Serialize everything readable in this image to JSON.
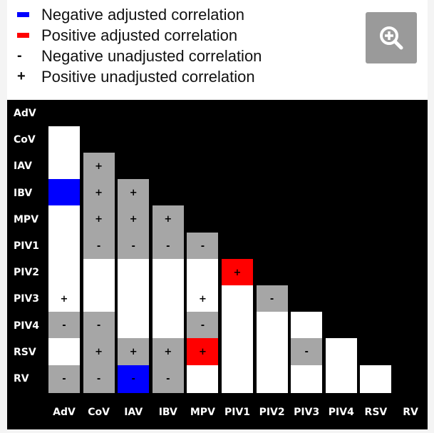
{
  "legend": [
    {
      "key": "",
      "swatch": "#0000ff",
      "label": "Negative adjusted correlation"
    },
    {
      "key": "",
      "swatch": "#ff0000",
      "label": "Positive adjusted correlation"
    },
    {
      "key": "-",
      "swatch": null,
      "label": "Negative unadjusted correlation"
    },
    {
      "key": "+",
      "swatch": null,
      "label": "Positive unadjusted correlation"
    }
  ],
  "toolbar": {
    "zoom_icon": "zoom-in-icon"
  },
  "colors": {
    "background": "#000000",
    "blank": "#ffffff",
    "unadjusted": "#a6a6a6",
    "negative_adjusted": "#0000ff",
    "positive_adjusted": "#ff0000"
  },
  "chart_data": {
    "type": "heatmap",
    "layout": "lower-triangular",
    "rows": [
      "AdV",
      "CoV",
      "IAV",
      "IBV",
      "MPV",
      "PIV1",
      "PIV2",
      "PIV3",
      "PIV4",
      "RSV",
      "RV"
    ],
    "columns": [
      "AdV",
      "CoV",
      "IAV",
      "IBV",
      "MPV",
      "PIV1",
      "PIV2",
      "PIV3",
      "PIV4",
      "RSV",
      "RV"
    ],
    "cell_types": {
      "none": "white",
      "unadjusted": "grey",
      "negative_adjusted": "blue",
      "positive_adjusted": "red"
    },
    "cells": [
      [],
      [
        [
          "none",
          ""
        ]
      ],
      [
        [
          "none",
          ""
        ],
        [
          "unadjusted",
          "+"
        ]
      ],
      [
        [
          "negative_adjusted",
          ""
        ],
        [
          "unadjusted",
          "+"
        ],
        [
          "unadjusted",
          "+"
        ]
      ],
      [
        [
          "none",
          ""
        ],
        [
          "unadjusted",
          "+"
        ],
        [
          "unadjusted",
          "+"
        ],
        [
          "unadjusted",
          "+"
        ]
      ],
      [
        [
          "none",
          ""
        ],
        [
          "unadjusted",
          "-"
        ],
        [
          "unadjusted",
          "-"
        ],
        [
          "unadjusted",
          "-"
        ],
        [
          "unadjusted",
          "-"
        ]
      ],
      [
        [
          "none",
          ""
        ],
        [
          "none",
          ""
        ],
        [
          "none",
          ""
        ],
        [
          "none",
          ""
        ],
        [
          "none",
          ""
        ],
        [
          "positive_adjusted",
          "+"
        ]
      ],
      [
        [
          "none",
          "+"
        ],
        [
          "none",
          ""
        ],
        [
          "none",
          ""
        ],
        [
          "none",
          ""
        ],
        [
          "none",
          "+"
        ],
        [
          "none",
          ""
        ],
        [
          "unadjusted",
          "-"
        ]
      ],
      [
        [
          "unadjusted",
          "-"
        ],
        [
          "unadjusted",
          "-"
        ],
        [
          "none",
          ""
        ],
        [
          "none",
          ""
        ],
        [
          "unadjusted",
          "-"
        ],
        [
          "none",
          ""
        ],
        [
          "none",
          ""
        ],
        [
          "none",
          ""
        ]
      ],
      [
        [
          "none",
          ""
        ],
        [
          "unadjusted",
          "+"
        ],
        [
          "unadjusted",
          "+"
        ],
        [
          "unadjusted",
          "+"
        ],
        [
          "positive_adjusted",
          "+"
        ],
        [
          "none",
          ""
        ],
        [
          "none",
          ""
        ],
        [
          "unadjusted",
          "-"
        ],
        [
          "none",
          ""
        ]
      ],
      [
        [
          "unadjusted",
          "-"
        ],
        [
          "unadjusted",
          "-"
        ],
        [
          "negative_adjusted",
          "-"
        ],
        [
          "unadjusted",
          "-"
        ],
        [
          "none",
          ""
        ],
        [
          "none",
          ""
        ],
        [
          "none",
          ""
        ],
        [
          "none",
          ""
        ],
        [
          "none",
          ""
        ],
        [
          "none",
          ""
        ]
      ]
    ]
  }
}
